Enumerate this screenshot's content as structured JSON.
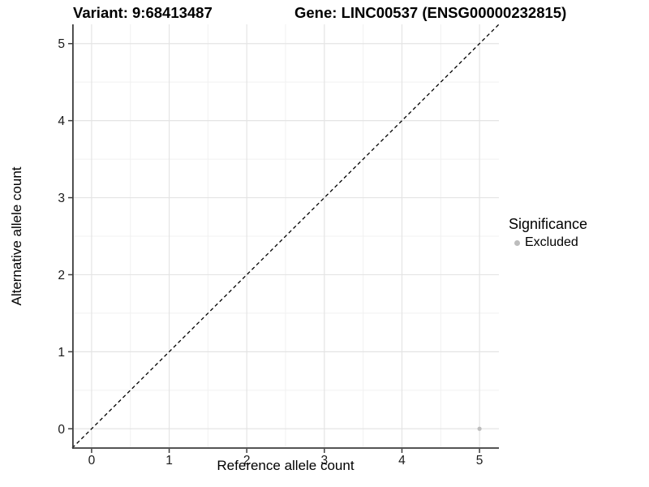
{
  "chart_data": {
    "type": "scatter",
    "title_left": "Variant: 9:68413487",
    "title_right": "Gene: LINC00537 (ENSG00000232815)",
    "xlabel": "Reference allele count",
    "ylabel": "Alternative allele count",
    "xlim": [
      -0.25,
      5.25
    ],
    "ylim": [
      -0.25,
      5.25
    ],
    "x_ticks": [
      0,
      1,
      2,
      3,
      4,
      5
    ],
    "y_ticks": [
      0,
      1,
      2,
      3,
      4,
      5
    ],
    "grid": "major and minor gridlines on, white background",
    "identity_line": {
      "equation": "y = x",
      "style": "dashed",
      "color": "#000000"
    },
    "series": [
      {
        "name": "Excluded",
        "color": "#bdbdbd",
        "points": [
          {
            "x": 5,
            "y": 0
          }
        ]
      }
    ],
    "legend": {
      "title": "Significance",
      "position": "right",
      "entries": [
        {
          "label": "Excluded",
          "color": "#bdbdbd"
        }
      ]
    },
    "colors": {
      "axis_line": "#3d3d3d",
      "tick_mark": "#3d3d3d",
      "grid_major": "#e4e4e4",
      "grid_minor": "#f1f1f1",
      "point": "#bdbdbd"
    }
  }
}
